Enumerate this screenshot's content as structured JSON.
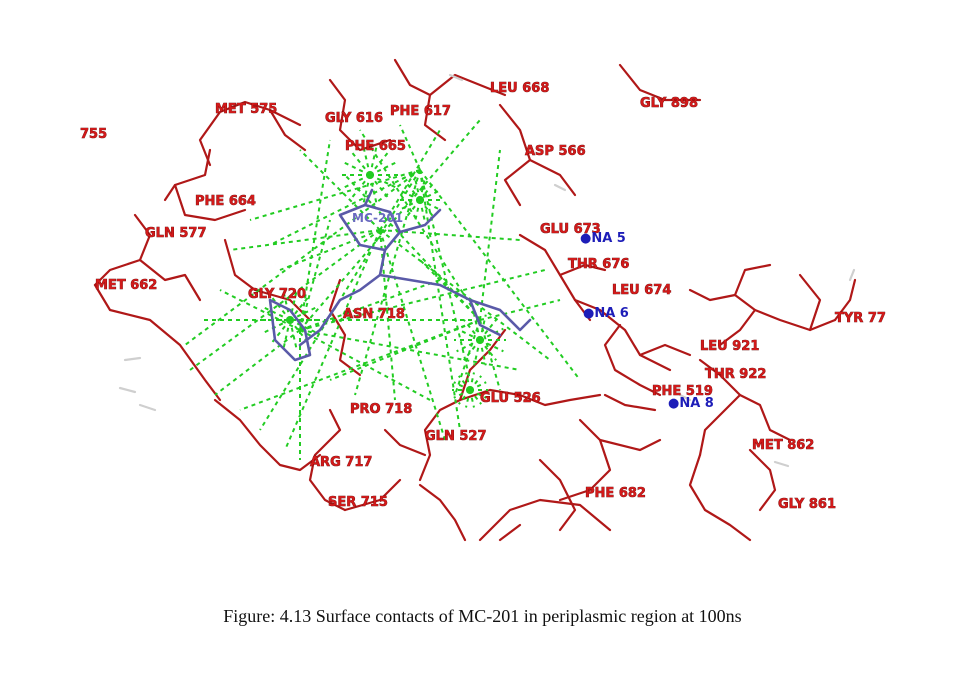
{
  "caption": "Figure: 4.13 Surface contacts of MC-201 in periplasmic region at 100ns",
  "colors": {
    "residue": "#b01818",
    "residue_label": "#d21a1a",
    "contact": "#22cc22",
    "ligand": "#5a5aa8",
    "ion": "#1d1db8",
    "hydrogen": "#cfcfcf"
  },
  "residue_labels": [
    "LEU 668",
    "GLY 898",
    "MET 575",
    "GLY 616",
    "PHE 617",
    "755",
    "PHE 665",
    "ASP 566",
    "PHE 664",
    "GLN 577",
    "GLU 673",
    "THR 676",
    "MET 662",
    "GLY 720",
    "LEU 674",
    "ASN 718",
    "TYR 77",
    "LEU 921",
    "THR 922",
    "GLU 526",
    "PHE 519",
    "PRO 718",
    "GLN 527",
    "MET 862",
    "ARG 717",
    "PHE 682",
    "SER 715",
    "GLY 861"
  ],
  "ion_labels": [
    "NA 5",
    "NA 6",
    "NA 8"
  ],
  "ligand_label": "MC-201"
}
